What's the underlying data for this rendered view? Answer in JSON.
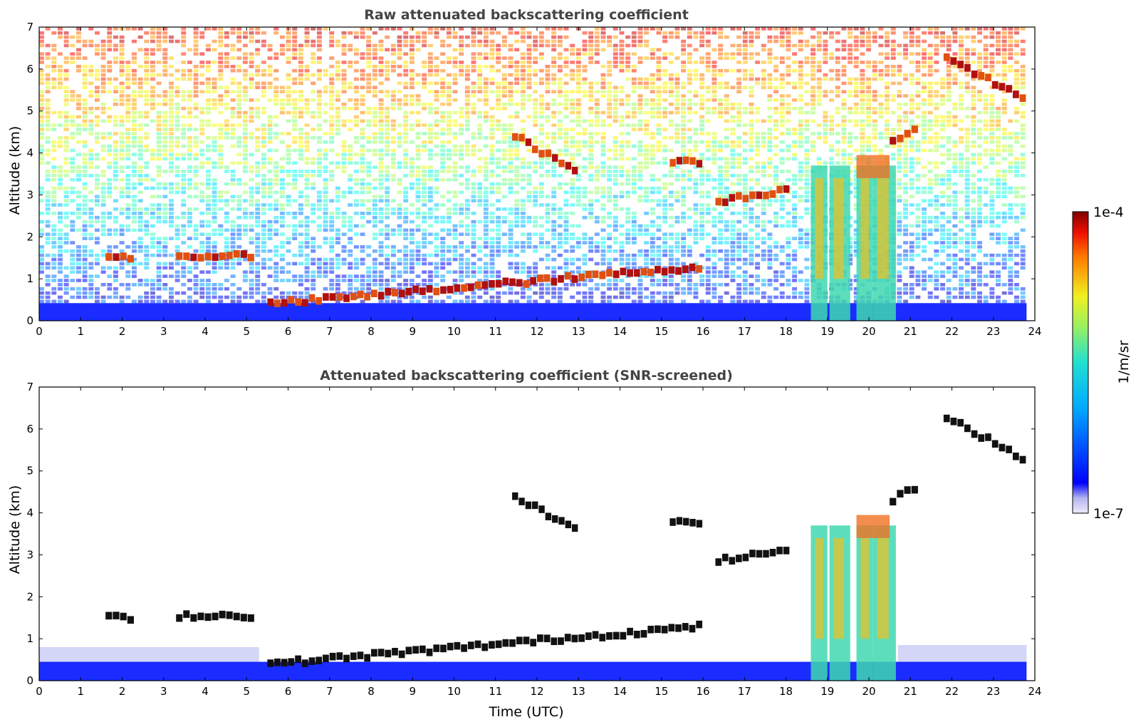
{
  "chart_data": [
    {
      "type": "heatmap",
      "title": "Raw attenuated backscattering coefficient",
      "xlabel": "",
      "ylabel": "Altitude (km)",
      "xlim": [
        0,
        24
      ],
      "ylim": [
        0,
        7
      ],
      "xticks": [
        "0",
        "1",
        "2",
        "3",
        "4",
        "5",
        "6",
        "7",
        "8",
        "9",
        "10",
        "11",
        "12",
        "13",
        "14",
        "15",
        "16",
        "17",
        "18",
        "19",
        "20",
        "21",
        "22",
        "23",
        "24"
      ],
      "yticks": [
        "0",
        "1",
        "2",
        "3",
        "4",
        "5",
        "6",
        "7"
      ],
      "variant": "raw",
      "features": [
        {
          "kind": "boundary_layer",
          "x_range": [
            0,
            23.8
          ],
          "top_km": 0.4
        },
        {
          "kind": "cloud_layer",
          "x_range": [
            1.6,
            2.3
          ],
          "altitude_km": 1.5
        },
        {
          "kind": "cloud_layer",
          "x_range": [
            3.3,
            5.2
          ],
          "altitude_km": 1.55
        },
        {
          "kind": "cloud_layer",
          "x_range": [
            5.5,
            16.0
          ],
          "altitude_km": [
            0.4,
            1.3
          ]
        },
        {
          "kind": "cloud_layer",
          "x_range": [
            11.4,
            13.0
          ],
          "altitude_km": [
            4.4,
            3.5
          ]
        },
        {
          "kind": "cloud_layer",
          "x_range": [
            15.2,
            16.0
          ],
          "altitude_km": 3.8
        },
        {
          "kind": "cloud_layer",
          "x_range": [
            16.3,
            18.1
          ],
          "altitude_km": [
            2.85,
            3.15
          ]
        },
        {
          "kind": "cloud_layer",
          "x_range": [
            20.5,
            21.2
          ],
          "altitude_km": [
            4.3,
            4.7
          ]
        },
        {
          "kind": "cloud_layer",
          "x_range": [
            21.8,
            23.8
          ],
          "altitude_km": [
            6.3,
            5.2
          ]
        },
        {
          "kind": "precipitation",
          "x_range": [
            18.6,
            20.7
          ],
          "top_km": 4.0
        }
      ]
    },
    {
      "type": "heatmap",
      "title": "Attenuated backscattering coefficient (SNR-screened)",
      "xlabel": "Time (UTC)",
      "ylabel": "Altitude (km)",
      "xlim": [
        0,
        24
      ],
      "ylim": [
        0,
        7
      ],
      "xticks": [
        "0",
        "1",
        "2",
        "3",
        "4",
        "5",
        "6",
        "7",
        "8",
        "9",
        "10",
        "11",
        "12",
        "13",
        "14",
        "15",
        "16",
        "17",
        "18",
        "19",
        "20",
        "21",
        "22",
        "23",
        "24"
      ],
      "yticks": [
        "0",
        "1",
        "2",
        "3",
        "4",
        "5",
        "6",
        "7"
      ],
      "variant": "screened"
    }
  ],
  "colorbar": {
    "label": "1/m/sr",
    "max_label": "1e-4",
    "min_label": "1e-7",
    "scale": "log",
    "colormap": "jet"
  }
}
